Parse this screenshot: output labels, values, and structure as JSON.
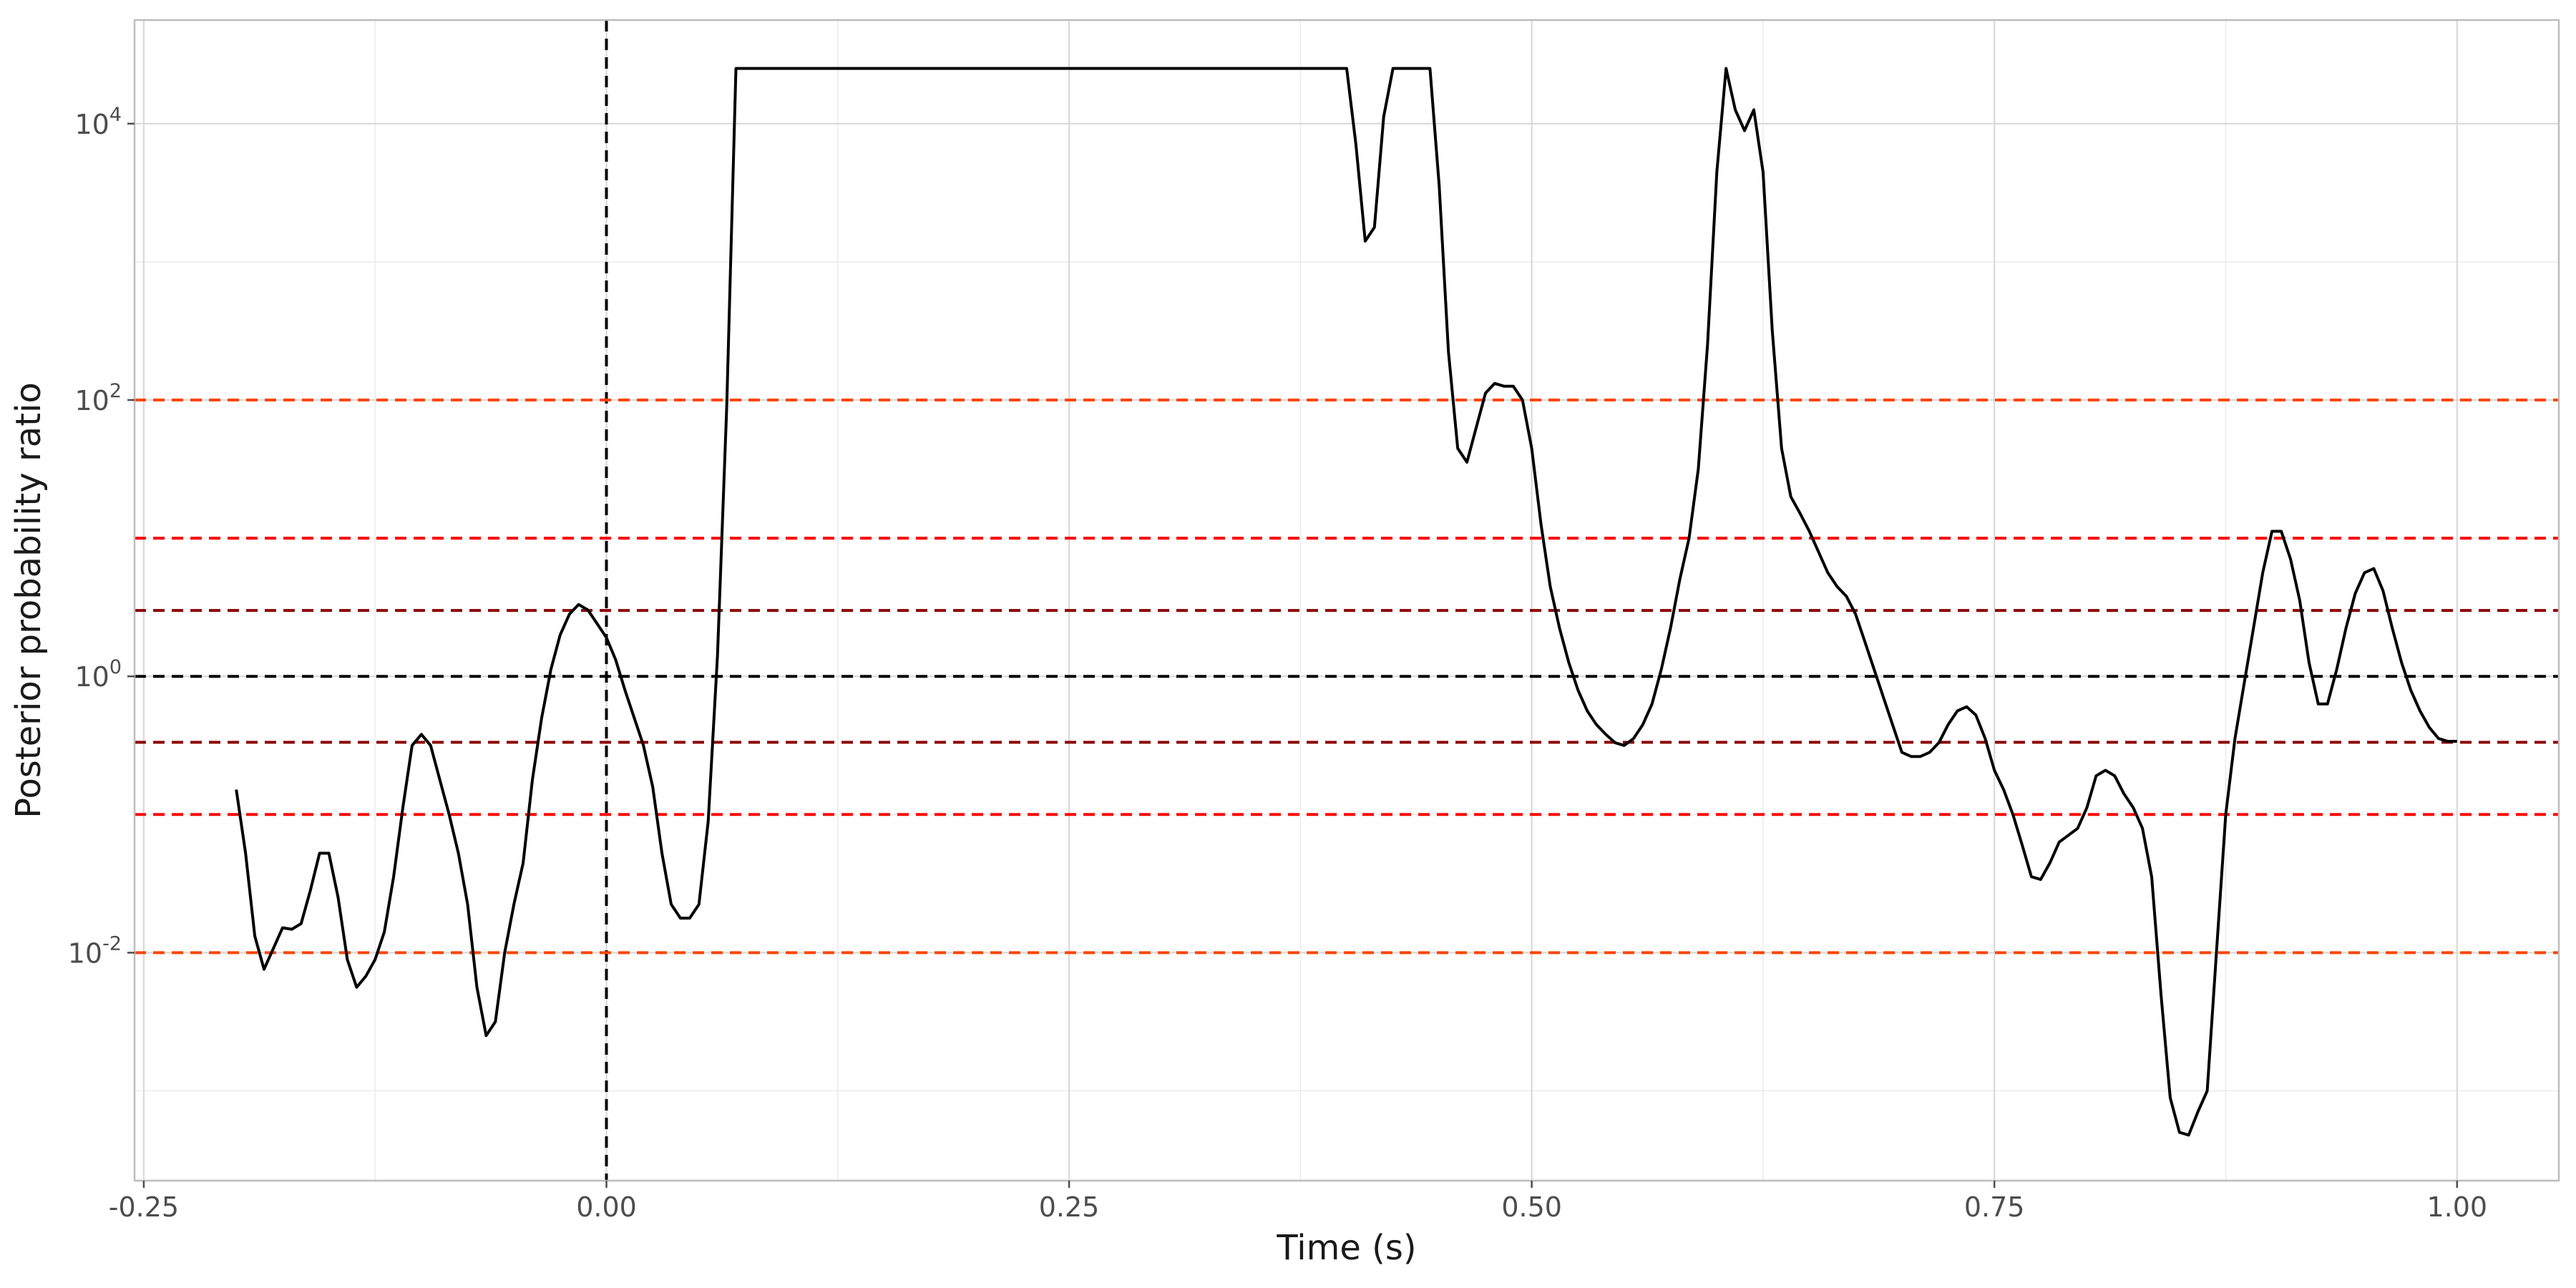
{
  "chart_data": {
    "type": "line",
    "title": "",
    "xlabel": "Time (s)",
    "ylabel": "Posterior probability ratio",
    "x_scale": "linear",
    "y_scale": "log10",
    "xlim": [
      -0.255,
      1.055
    ],
    "ylim_log10": [
      -3.65,
      4.75
    ],
    "x_ticks": [
      {
        "value": -0.25,
        "label": "-0.25"
      },
      {
        "value": 0.0,
        "label": "0.00"
      },
      {
        "value": 0.25,
        "label": "0.25"
      },
      {
        "value": 0.5,
        "label": "0.50"
      },
      {
        "value": 0.75,
        "label": "0.75"
      },
      {
        "value": 1.0,
        "label": "1.00"
      }
    ],
    "y_ticks": [
      {
        "log10": -2,
        "base": "10",
        "exp": "-2"
      },
      {
        "log10": 0,
        "base": "10",
        "exp": "0"
      },
      {
        "log10": 2,
        "base": "10",
        "exp": "2"
      },
      {
        "log10": 4,
        "base": "10",
        "exp": "4"
      }
    ],
    "grid": true,
    "legend": "none",
    "reference_lines": [
      {
        "axis": "x",
        "value": 0,
        "color": "#000000",
        "style": "dashed"
      },
      {
        "axis": "y",
        "value": 100,
        "color": "#ff4500",
        "style": "dashed"
      },
      {
        "axis": "y",
        "value": 10,
        "color": "#ff0000",
        "style": "dashed"
      },
      {
        "axis": "y",
        "value": 3,
        "color": "#8b0000",
        "style": "dashed"
      },
      {
        "axis": "y",
        "value": 1,
        "color": "#000000",
        "style": "dashed"
      },
      {
        "axis": "y",
        "value": 0.3333,
        "color": "#8b0000",
        "style": "dashed"
      },
      {
        "axis": "y",
        "value": 0.1,
        "color": "#ff0000",
        "style": "dashed"
      },
      {
        "axis": "y",
        "value": 0.01,
        "color": "#ff4500",
        "style": "dashed"
      }
    ],
    "series": [
      {
        "color": "#000000",
        "x": [
          -0.2,
          -0.195,
          -0.19,
          -0.185,
          -0.18,
          -0.175,
          -0.17,
          -0.165,
          -0.16,
          -0.155,
          -0.15,
          -0.145,
          -0.14,
          -0.135,
          -0.13,
          -0.125,
          -0.12,
          -0.115,
          -0.11,
          -0.105,
          -0.1,
          -0.095,
          -0.09,
          -0.085,
          -0.08,
          -0.075,
          -0.07,
          -0.065,
          -0.06,
          -0.055,
          -0.05,
          -0.045,
          -0.04,
          -0.035,
          -0.03,
          -0.025,
          -0.02,
          -0.015,
          -0.01,
          -0.005,
          0.0,
          0.005,
          0.01,
          0.015,
          0.02,
          0.025,
          0.03,
          0.035,
          0.04,
          0.045,
          0.05,
          0.055,
          0.06,
          0.065,
          0.07,
          0.4,
          0.405,
          0.41,
          0.415,
          0.42,
          0.425,
          0.43,
          0.435,
          0.44,
          0.445,
          0.45,
          0.455,
          0.46,
          0.465,
          0.47,
          0.475,
          0.48,
          0.485,
          0.49,
          0.495,
          0.5,
          0.505,
          0.51,
          0.515,
          0.52,
          0.525,
          0.53,
          0.535,
          0.54,
          0.545,
          0.55,
          0.555,
          0.56,
          0.565,
          0.57,
          0.575,
          0.58,
          0.585,
          0.59,
          0.595,
          0.6,
          0.605,
          0.61,
          0.615,
          0.62,
          0.625,
          0.63,
          0.635,
          0.64,
          0.645,
          0.65,
          0.655,
          0.66,
          0.665,
          0.67,
          0.675,
          0.68,
          0.685,
          0.69,
          0.695,
          0.7,
          0.705,
          0.71,
          0.715,
          0.72,
          0.725,
          0.73,
          0.735,
          0.74,
          0.745,
          0.75,
          0.755,
          0.76,
          0.765,
          0.77,
          0.775,
          0.78,
          0.785,
          0.79,
          0.795,
          0.8,
          0.805,
          0.81,
          0.815,
          0.82,
          0.825,
          0.83,
          0.835,
          0.84,
          0.845,
          0.85,
          0.855,
          0.86,
          0.865,
          0.87,
          0.875,
          0.88,
          0.885,
          0.89,
          0.895,
          0.9,
          0.905,
          0.91,
          0.915,
          0.92,
          0.925,
          0.93,
          0.935,
          0.94,
          0.945,
          0.95,
          0.955,
          0.96,
          0.965,
          0.97,
          0.975,
          0.98,
          0.985,
          0.99,
          0.995,
          1.0
        ],
        "log10_y": [
          -0.82,
          -1.28,
          -1.88,
          -2.12,
          -1.97,
          -1.82,
          -1.83,
          -1.79,
          -1.55,
          -1.28,
          -1.28,
          -1.6,
          -2.05,
          -2.25,
          -2.17,
          -2.05,
          -1.85,
          -1.45,
          -0.95,
          -0.5,
          -0.42,
          -0.5,
          -0.75,
          -1.0,
          -1.28,
          -1.65,
          -2.25,
          -2.6,
          -2.5,
          -2.0,
          -1.65,
          -1.35,
          -0.75,
          -0.3,
          0.05,
          0.3,
          0.45,
          0.52,
          0.48,
          0.38,
          0.28,
          0.12,
          -0.1,
          -0.3,
          -0.5,
          -0.8,
          -1.28,
          -1.65,
          -1.75,
          -1.75,
          -1.65,
          -1.05,
          0.15,
          1.95,
          4.4,
          4.4,
          3.85,
          3.15,
          3.25,
          4.05,
          4.4,
          4.4,
          4.4,
          4.4,
          4.4,
          3.55,
          2.35,
          1.65,
          1.55,
          1.8,
          2.05,
          2.12,
          2.1,
          2.1,
          2.0,
          1.65,
          1.1,
          0.65,
          0.35,
          0.1,
          -0.1,
          -0.25,
          -0.35,
          -0.42,
          -0.48,
          -0.5,
          -0.45,
          -0.35,
          -0.2,
          0.05,
          0.35,
          0.7,
          1.0,
          1.5,
          2.4,
          3.65,
          4.4,
          4.1,
          3.95,
          4.1,
          3.65,
          2.5,
          1.65,
          1.3,
          1.18,
          1.05,
          0.9,
          0.75,
          0.65,
          0.58,
          0.45,
          0.25,
          0.05,
          -0.15,
          -0.35,
          -0.55,
          -0.58,
          -0.58,
          -0.55,
          -0.48,
          -0.35,
          -0.25,
          -0.22,
          -0.28,
          -0.45,
          -0.68,
          -0.82,
          -1.0,
          -1.22,
          -1.45,
          -1.47,
          -1.35,
          -1.2,
          -1.15,
          -1.1,
          -0.95,
          -0.72,
          -0.68,
          -0.72,
          -0.85,
          -0.95,
          -1.1,
          -1.45,
          -2.3,
          -3.05,
          -3.3,
          -3.32,
          -3.15,
          -3.0,
          -2.0,
          -1.0,
          -0.45,
          -0.05,
          0.35,
          0.75,
          1.05,
          1.05,
          0.85,
          0.55,
          0.1,
          -0.2,
          -0.2,
          0.05,
          0.35,
          0.6,
          0.75,
          0.78,
          0.62,
          0.35,
          0.1,
          -0.1,
          -0.25,
          -0.37,
          -0.45,
          -0.47,
          -0.47
        ]
      }
    ]
  }
}
